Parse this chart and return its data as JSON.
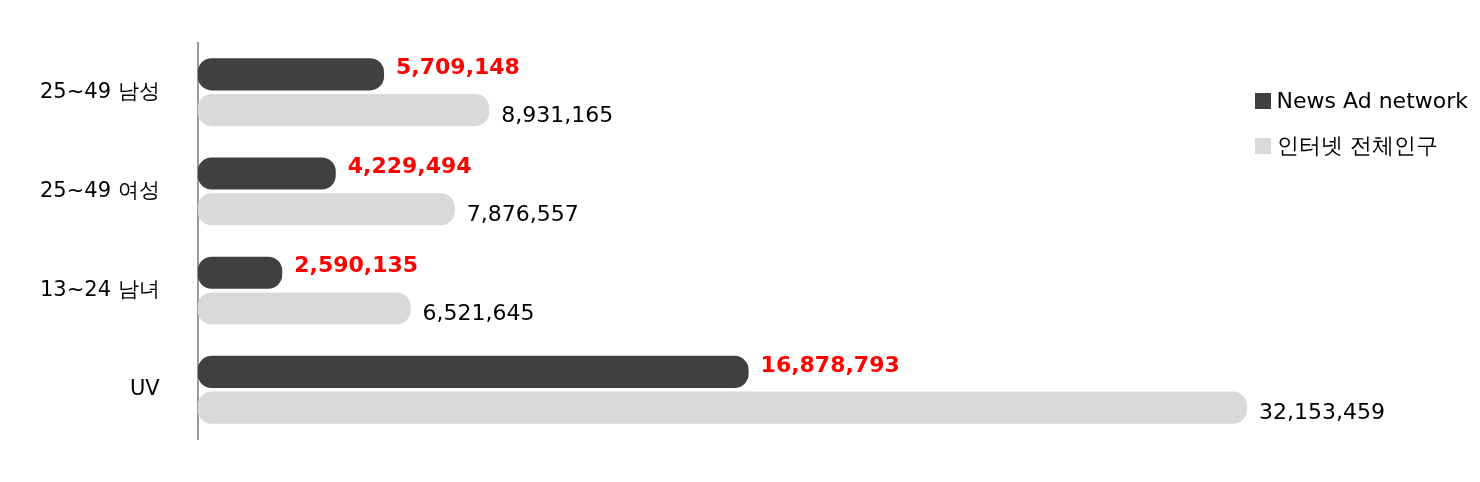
{
  "chart_data": {
    "type": "bar",
    "orientation": "horizontal",
    "categories": [
      "25~49 남성",
      "25~49 여성",
      "13~24 남녀",
      "UV"
    ],
    "series": [
      {
        "name": "News Ad network",
        "color": "#404040",
        "values": [
          5709148,
          4229494,
          2590135,
          16878793
        ],
        "value_labels": [
          "5,709,148",
          "4,229,494",
          "2,590,135",
          "16,878,793"
        ]
      },
      {
        "name": "인터넷 전체인구",
        "color": "#d9d9d9",
        "values": [
          8931165,
          7876557,
          6521645,
          32153459
        ],
        "value_labels": [
          "8,931,165",
          "7,876,557",
          "6,521,645",
          "32,153,459"
        ]
      }
    ],
    "tick_labels": "y",
    "legend": "top right"
  }
}
